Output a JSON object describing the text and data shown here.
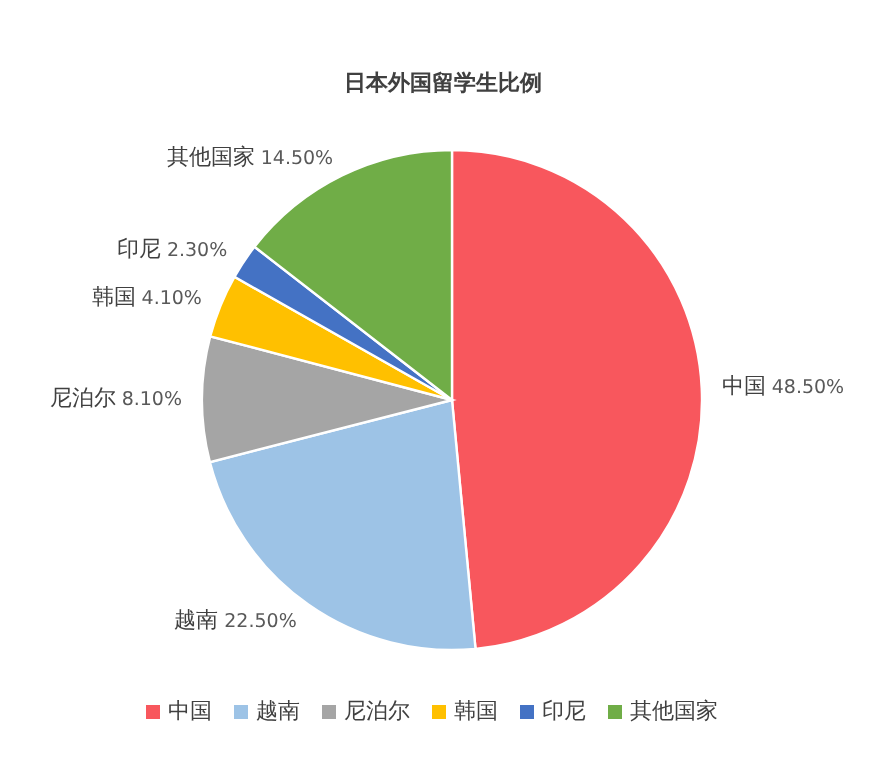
{
  "chart_data": {
    "type": "pie",
    "title": "日本外国留学生比例",
    "categories": [
      "中国",
      "越南",
      "尼泊尔",
      "韩国",
      "印尼",
      "其他国家"
    ],
    "values": [
      48.5,
      22.5,
      8.1,
      4.1,
      2.3,
      14.5
    ],
    "value_labels": [
      "48.50%",
      "22.50%",
      "8.10%",
      "4.10%",
      "2.30%",
      "14.50%"
    ],
    "colors": [
      "#f8575d",
      "#9dc3e6",
      "#a5a5a5",
      "#ffc000",
      "#4472c4",
      "#70ad47"
    ],
    "legend": "bottom"
  }
}
